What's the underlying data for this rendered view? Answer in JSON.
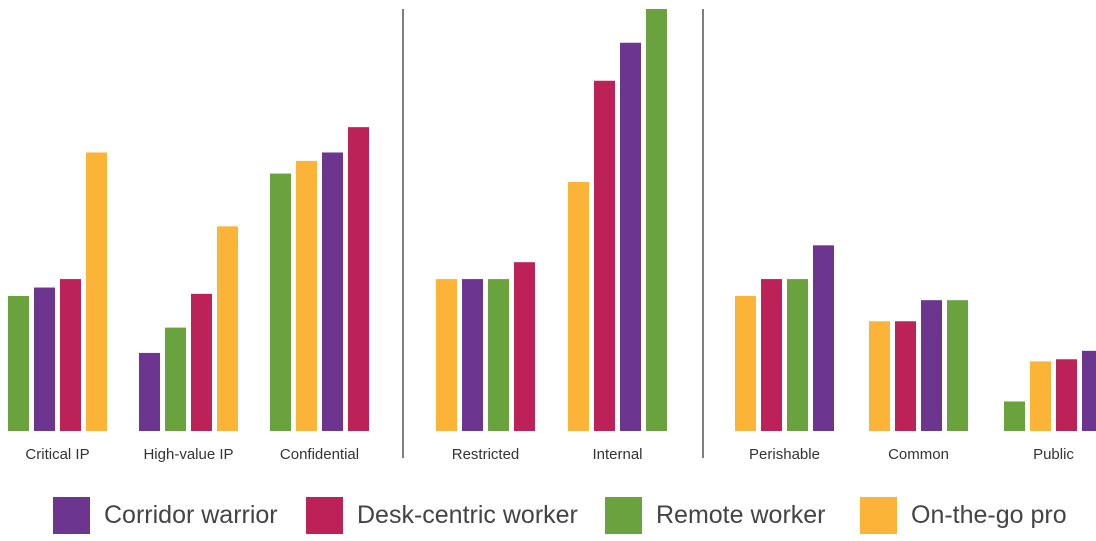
{
  "colors": {
    "Corridor warrior": "#6b3590",
    "Desk-centric worker": "#bc2158",
    "Remote worker": "#6aa33d",
    "On-the-go pro": "#fbb338",
    "divider": "#555555"
  },
  "legend": [
    {
      "label": "Corridor warrior",
      "color": "#6b3590"
    },
    {
      "label": "Desk-centric worker",
      "color": "#bc2158"
    },
    {
      "label": "Remote worker",
      "color": "#6aa33d"
    },
    {
      "label": "On-the-go pro",
      "color": "#fbb338"
    }
  ],
  "chart_data": {
    "type": "bar",
    "title": "",
    "xlabel": "",
    "ylabel": "",
    "ylim": [
      0,
      100
    ],
    "grid": false,
    "legend_position": "bottom",
    "group_dividers_after": [
      "Confidential",
      "Internal"
    ],
    "categories": [
      "Critical IP",
      "High-value IP",
      "Confidential",
      "Restricted",
      "Internal",
      "Perishable",
      "Common",
      "Public"
    ],
    "groups": [
      {
        "category": "Critical IP",
        "bars": [
          {
            "series": "Remote worker",
            "value": 32
          },
          {
            "series": "Corridor warrior",
            "value": 34
          },
          {
            "series": "Desk-centric worker",
            "value": 36
          },
          {
            "series": "On-the-go pro",
            "value": 66
          }
        ]
      },
      {
        "category": "High-value IP",
        "bars": [
          {
            "series": "Corridor warrior",
            "value": 18.5
          },
          {
            "series": "Remote worker",
            "value": 24.5
          },
          {
            "series": "Desk-centric worker",
            "value": 32.5
          },
          {
            "series": "On-the-go pro",
            "value": 48.5
          }
        ]
      },
      {
        "category": "Confidential",
        "bars": [
          {
            "series": "Remote worker",
            "value": 61
          },
          {
            "series": "On-the-go pro",
            "value": 64
          },
          {
            "series": "Corridor warrior",
            "value": 66
          },
          {
            "series": "Desk-centric worker",
            "value": 72
          }
        ]
      },
      {
        "category": "Restricted",
        "bars": [
          {
            "series": "On-the-go pro",
            "value": 36
          },
          {
            "series": "Corridor warrior",
            "value": 36
          },
          {
            "series": "Remote worker",
            "value": 36
          },
          {
            "series": "Desk-centric worker",
            "value": 40
          }
        ]
      },
      {
        "category": "Internal",
        "bars": [
          {
            "series": "On-the-go pro",
            "value": 59
          },
          {
            "series": "Desk-centric worker",
            "value": 83
          },
          {
            "series": "Corridor warrior",
            "value": 92
          },
          {
            "series": "Remote worker",
            "value": 100
          }
        ]
      },
      {
        "category": "Perishable",
        "bars": [
          {
            "series": "On-the-go pro",
            "value": 32
          },
          {
            "series": "Desk-centric worker",
            "value": 36
          },
          {
            "series": "Remote worker",
            "value": 36
          },
          {
            "series": "Corridor warrior",
            "value": 44
          }
        ]
      },
      {
        "category": "Common",
        "bars": [
          {
            "series": "On-the-go pro",
            "value": 26
          },
          {
            "series": "Desk-centric worker",
            "value": 26
          },
          {
            "series": "Corridor warrior",
            "value": 31
          },
          {
            "series": "Remote worker",
            "value": 31
          }
        ]
      },
      {
        "category": "Public",
        "bars": [
          {
            "series": "Remote worker",
            "value": 7
          },
          {
            "series": "On-the-go pro",
            "value": 16.5
          },
          {
            "series": "Desk-centric worker",
            "value": 17
          },
          {
            "series": "Corridor warrior",
            "value": 19
          }
        ]
      }
    ]
  }
}
